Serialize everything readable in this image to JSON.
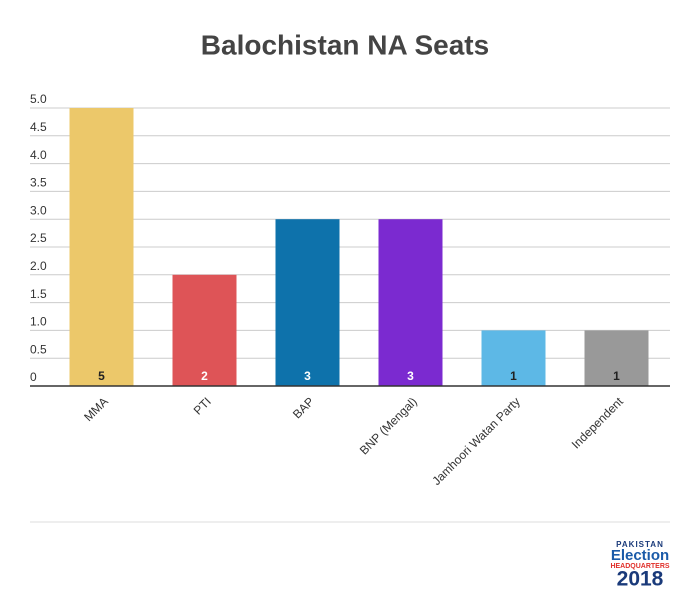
{
  "chart_data": {
    "type": "bar",
    "title": "Balochistan NA Seats",
    "categories": [
      "MMA",
      "PTI",
      "BAP",
      "BNP (Mengal)",
      "Jamhoori Watan Party",
      "Independent"
    ],
    "values": [
      5,
      2,
      3,
      3,
      1,
      1
    ],
    "colors": [
      "#ecc86a",
      "#de5457",
      "#0e72ab",
      "#7b2ad0",
      "#5db8e6",
      "#999999"
    ],
    "ylim": [
      0,
      5
    ],
    "yticks": [
      0,
      0.5,
      {
        "value": 1,
        "label": "1.0"
      },
      1.5,
      {
        "value": 2,
        "label": "2.0"
      },
      2.5,
      {
        "value": 3,
        "label": "3.0"
      },
      3.5,
      {
        "value": 4,
        "label": "4.0"
      },
      4.5,
      {
        "value": 5,
        "label": "5.0"
      }
    ],
    "grid": true
  },
  "logo": {
    "country": "PAKISTAN",
    "word": "Election",
    "sub": "HEADQUARTERS",
    "year": "2018"
  }
}
